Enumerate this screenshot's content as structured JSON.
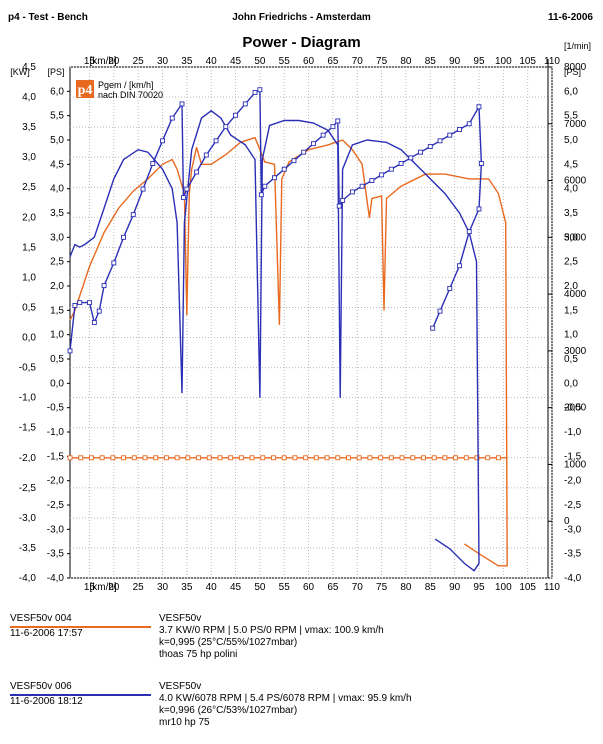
{
  "header": {
    "left": "p4 - Test - Bench",
    "center": "John Friedrichs  -  Amsterdam",
    "right": "11-6-2006"
  },
  "chart_data": {
    "type": "line",
    "title": "Power - Diagram",
    "xlabel": "[km/h]",
    "x_range": [
      11,
      110
    ],
    "x_ticks": [
      15,
      20,
      25,
      30,
      35,
      40,
      45,
      50,
      55,
      60,
      65,
      70,
      75,
      80,
      85,
      90,
      95,
      100,
      105,
      110
    ],
    "kw_axis": {
      "label": "[KW]",
      "range": [
        -4.0,
        4.5
      ],
      "ticks": [
        "4,5",
        "4,0",
        "3,5",
        "3,0",
        "2,5",
        "2,0",
        "1,5",
        "1,0",
        "0,5",
        "0,0",
        "-0,5",
        "-1,0",
        "-1,5",
        "-2,0",
        "-2,5",
        "-3,0",
        "-3,5",
        "-4,0"
      ]
    },
    "ps_axis": {
      "label": "[PS]",
      "range": [
        -4.0,
        6.5
      ],
      "ticks": [
        "6,0",
        "5,5",
        "5,0",
        "4,5",
        "4,0",
        "3,5",
        "3,0",
        "2,5",
        "2,0",
        "1,5",
        "1,0",
        "0,5",
        "0,0",
        "-0,5",
        "-1,0",
        "-1,5",
        "-2,0",
        "-2,5",
        "-3,0",
        "-3,5",
        "-4,0"
      ]
    },
    "rpm_axis": {
      "label": "[1/min]",
      "range": [
        -1000,
        8000
      ],
      "ticks": [
        "8000",
        "7000",
        "6000",
        "5000",
        "4000",
        "3000",
        "2000",
        "1000",
        "0"
      ]
    },
    "grid": true,
    "legend_placement": "below",
    "logo_text": "p4",
    "logo_caption_1": "Pgem / [km/h]",
    "logo_caption_2": "nach DIN 70020",
    "series": [
      {
        "name": "VESF50v 004",
        "color": "#e8691f",
        "axis": "PS",
        "kind": "power",
        "points": [
          [
            11,
            1.3
          ],
          [
            12,
            1.5
          ],
          [
            15,
            2.4
          ],
          [
            18,
            3.1
          ],
          [
            21,
            3.6
          ],
          [
            24,
            3.95
          ],
          [
            27,
            4.2
          ],
          [
            30,
            4.5
          ],
          [
            32,
            4.6
          ],
          [
            33,
            4.4
          ],
          [
            34.5,
            3.9
          ],
          [
            35,
            1.4
          ],
          [
            35.5,
            3.9
          ],
          [
            36,
            4.4
          ],
          [
            37,
            4.85
          ],
          [
            38,
            4.5
          ],
          [
            40,
            4.5
          ],
          [
            43,
            4.7
          ],
          [
            46,
            4.95
          ],
          [
            49,
            5.05
          ],
          [
            50,
            4.8
          ],
          [
            51,
            4.55
          ],
          [
            53,
            4.5
          ],
          [
            54,
            1.2
          ],
          [
            54.5,
            4.2
          ],
          [
            56,
            4.55
          ],
          [
            60,
            4.8
          ],
          [
            64,
            4.9
          ],
          [
            67,
            5.0
          ],
          [
            69,
            4.8
          ],
          [
            71,
            4.5
          ],
          [
            72.5,
            3.4
          ],
          [
            73,
            3.8
          ],
          [
            75,
            3.85
          ],
          [
            75.5,
            1.5
          ],
          [
            76,
            3.8
          ],
          [
            79,
            4.05
          ],
          [
            84,
            4.3
          ],
          [
            88,
            4.3
          ],
          [
            93,
            4.2
          ],
          [
            97,
            4.2
          ],
          [
            99,
            3.9
          ],
          [
            100.5,
            3.3
          ],
          [
            100.8,
            -3.75
          ],
          [
            99,
            -3.75
          ],
          [
            95,
            -3.5
          ],
          [
            92,
            -3.3
          ]
        ]
      },
      {
        "name": "VESF50v 004 loss",
        "color": "#e8691f",
        "axis": "KW",
        "kind": "loss",
        "marker": "square",
        "points": [
          [
            11,
            -2.0
          ],
          [
            100.8,
            -2.0
          ]
        ]
      },
      {
        "name": "VESF50v 006",
        "color": "#2b2fb5",
        "axis": "PS",
        "kind": "power",
        "points": [
          [
            11,
            2.6
          ],
          [
            12,
            2.85
          ],
          [
            13,
            2.8
          ],
          [
            14,
            2.85
          ],
          [
            16,
            3.0
          ],
          [
            18,
            3.6
          ],
          [
            20,
            4.2
          ],
          [
            22,
            4.6
          ],
          [
            25,
            4.8
          ],
          [
            27,
            4.75
          ],
          [
            30,
            4.4
          ],
          [
            32,
            4.0
          ],
          [
            33,
            3.3
          ],
          [
            34,
            -0.2
          ],
          [
            34.5,
            3.3
          ],
          [
            36,
            4.8
          ],
          [
            38,
            5.45
          ],
          [
            40,
            5.6
          ],
          [
            42,
            5.45
          ],
          [
            44,
            5.1
          ],
          [
            47,
            4.9
          ],
          [
            49,
            4.6
          ],
          [
            50,
            -0.3
          ],
          [
            50.5,
            4.6
          ],
          [
            52,
            5.3
          ],
          [
            55,
            5.4
          ],
          [
            58,
            5.4
          ],
          [
            61,
            5.35
          ],
          [
            64,
            5.2
          ],
          [
            66,
            4.9
          ],
          [
            66.5,
            -0.3
          ],
          [
            67,
            4.4
          ],
          [
            69,
            4.9
          ],
          [
            72,
            5.0
          ],
          [
            76,
            4.95
          ],
          [
            79,
            4.8
          ],
          [
            82,
            4.5
          ],
          [
            85,
            4.2
          ],
          [
            88,
            3.9
          ],
          [
            91,
            3.5
          ],
          [
            93,
            3.1
          ],
          [
            94.5,
            2.5
          ],
          [
            95,
            -3.7
          ],
          [
            94,
            -3.85
          ],
          [
            92,
            -3.7
          ],
          [
            89,
            -3.4
          ],
          [
            86,
            -3.2
          ]
        ]
      },
      {
        "name": "VESF50v 006 rpm",
        "color": "#2b2fb5",
        "axis": "RPM",
        "kind": "rpm",
        "marker": "square",
        "points": [
          [
            11,
            3000
          ],
          [
            12,
            3800
          ],
          [
            13,
            3850
          ],
          [
            15,
            3850
          ],
          [
            16,
            3500
          ],
          [
            17,
            3700
          ],
          [
            18,
            4150
          ],
          [
            20,
            4550
          ],
          [
            22,
            5000
          ],
          [
            24,
            5400
          ],
          [
            26,
            5850
          ],
          [
            28,
            6300
          ],
          [
            30,
            6700
          ],
          [
            32,
            7100
          ],
          [
            34,
            7350
          ],
          [
            34.3,
            5700
          ],
          [
            35,
            5850
          ],
          [
            37,
            6150
          ],
          [
            39,
            6450
          ],
          [
            41,
            6700
          ],
          [
            43,
            6950
          ],
          [
            45,
            7150
          ],
          [
            47,
            7350
          ],
          [
            49,
            7550
          ],
          [
            50,
            7600
          ],
          [
            50.3,
            5750
          ],
          [
            51,
            5900
          ],
          [
            53,
            6050
          ],
          [
            55,
            6200
          ],
          [
            57,
            6350
          ],
          [
            59,
            6500
          ],
          [
            61,
            6650
          ],
          [
            63,
            6800
          ],
          [
            65,
            6950
          ],
          [
            66,
            7050
          ],
          [
            66.3,
            5550
          ],
          [
            67,
            5650
          ],
          [
            69,
            5800
          ],
          [
            71,
            5900
          ],
          [
            73,
            6000
          ],
          [
            75,
            6100
          ],
          [
            77,
            6200
          ],
          [
            79,
            6300
          ],
          [
            81,
            6400
          ],
          [
            83,
            6500
          ],
          [
            85,
            6600
          ],
          [
            87,
            6700
          ],
          [
            89,
            6800
          ],
          [
            91,
            6900
          ],
          [
            93,
            7000
          ],
          [
            95,
            7300
          ],
          [
            95.5,
            6300
          ],
          [
            95,
            5500
          ],
          [
            93,
            5100
          ],
          [
            91,
            4500
          ],
          [
            89,
            4100
          ],
          [
            87,
            3700
          ],
          [
            85.5,
            3400
          ]
        ]
      }
    ]
  },
  "legend": [
    {
      "name": "VESF50v 004",
      "date": "11-6-2006  17:57",
      "color": "#e8691f",
      "title": "VESF50v",
      "line1": "3.7 KW/0 RPM  |  5.0 PS/0 RPM  |  vmax: 100.9 km/h",
      "line2": "k=0,995 (25°C/55%/1027mbar)",
      "line3": "thoas 75 hp polini"
    },
    {
      "name": "VESF50v 006",
      "date": "11-6-2006  18:12",
      "color": "#2b2fb5",
      "title": "VESF50v",
      "line1": "4.0 KW/6078 RPM  |  5.4 PS/6078 RPM  |  vmax: 95.9 km/h",
      "line2": "k=0,996 (26°C/53%/1027mbar)",
      "line3": "mr10 hp 75"
    }
  ]
}
